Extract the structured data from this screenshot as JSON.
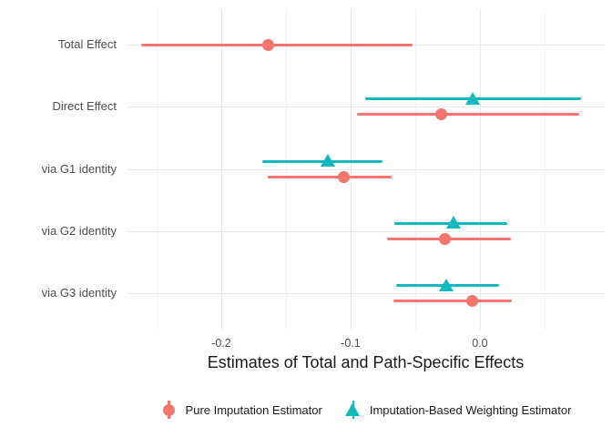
{
  "chart_data": {
    "type": "pointrange-forest",
    "title": "",
    "xlabel": "Estimates of Total and Path-Specific Effects",
    "legend_position": "bottom",
    "grid": true,
    "x_axis": {
      "min": -0.2725,
      "max": 0.0958,
      "major_ticks": [
        -0.2,
        -0.1,
        0.0
      ],
      "tick_labels": [
        "-0.2",
        "-0.1",
        "0.0"
      ],
      "minor_ticks": [
        -0.25,
        -0.15,
        -0.05,
        0.05
      ]
    },
    "categories": [
      "Total Effect",
      "Direct Effect",
      "via G1 identity",
      "via G2 identity",
      "via G3 identity"
    ],
    "series": [
      {
        "name": "Pure Imputation Estimator",
        "marker": "circle",
        "color": "#f4756e",
        "points": [
          {
            "est": -0.164,
            "lo": -0.262,
            "hi": -0.052
          },
          {
            "est": -0.03,
            "lo": -0.095,
            "hi": 0.077
          },
          {
            "est": -0.105,
            "lo": -0.164,
            "hi": -0.068
          },
          {
            "est": -0.027,
            "lo": -0.072,
            "hi": 0.024
          },
          {
            "est": -0.006,
            "lo": -0.067,
            "hi": 0.025
          }
        ]
      },
      {
        "name": "Imputation-Based Weighting Estimator",
        "marker": "triangle-up",
        "color": "#0fb9bd",
        "points": [
          null,
          {
            "est": -0.005,
            "lo": -0.089,
            "hi": 0.078
          },
          {
            "est": -0.117,
            "lo": -0.168,
            "hi": -0.075
          },
          {
            "est": -0.02,
            "lo": -0.066,
            "hi": 0.021
          },
          {
            "est": -0.026,
            "lo": -0.065,
            "hi": 0.015
          }
        ]
      }
    ],
    "colors": {
      "grid_major": "#e9e9e9",
      "grid_minor": "#f2f2f2",
      "axis_text": "#4d4d4d",
      "title_text": "#1a1a1a"
    }
  }
}
